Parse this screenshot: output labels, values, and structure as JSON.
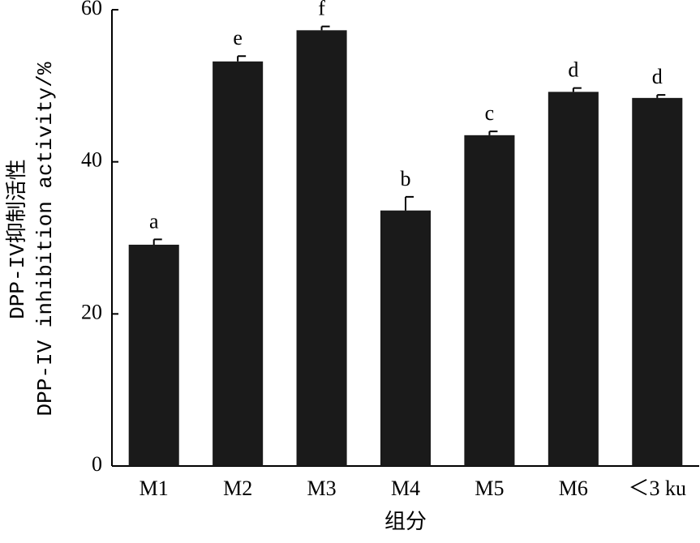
{
  "chart_data": {
    "type": "bar",
    "y_label_lines": [
      "DPP-IV抑制活性",
      "DPP-IV inhibition activity/%"
    ],
    "x_label": "组分",
    "categories": [
      "M1",
      "M2",
      "M3",
      "M4",
      "M5",
      "M6",
      "＜3 ku"
    ],
    "values": [
      29.1,
      53.2,
      57.3,
      33.6,
      43.5,
      49.2,
      48.4
    ],
    "errors": [
      0.7,
      0.7,
      0.5,
      1.8,
      0.5,
      0.5,
      0.4
    ],
    "annotations": [
      "a",
      "e",
      "f",
      "b",
      "c",
      "d",
      "d"
    ],
    "color": "#1a1a1a",
    "ylim": [
      0,
      60
    ],
    "yticks": [
      0,
      20,
      40,
      60
    ],
    "grid": false
  }
}
